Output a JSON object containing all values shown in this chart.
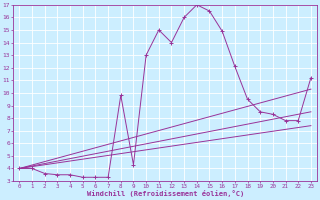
{
  "xlabel": "Windchill (Refroidissement éolien,°C)",
  "bg_color": "#cceeff",
  "line_color": "#993399",
  "grid_color": "#ffffff",
  "xlim": [
    -0.5,
    23.5
  ],
  "ylim": [
    3,
    17
  ],
  "xticks": [
    0,
    1,
    2,
    3,
    4,
    5,
    6,
    7,
    8,
    9,
    10,
    11,
    12,
    13,
    14,
    15,
    16,
    17,
    18,
    19,
    20,
    21,
    22,
    23
  ],
  "yticks": [
    3,
    4,
    5,
    6,
    7,
    8,
    9,
    10,
    11,
    12,
    13,
    14,
    15,
    16,
    17
  ],
  "main_x": [
    0,
    1,
    2,
    3,
    4,
    5,
    6,
    7,
    8,
    9,
    10,
    11,
    12,
    13,
    14,
    15,
    16,
    17,
    18,
    19,
    20,
    21,
    22,
    23
  ],
  "main_y": [
    4.0,
    4.0,
    3.6,
    3.5,
    3.5,
    3.3,
    3.3,
    3.3,
    9.8,
    4.3,
    13.0,
    15.0,
    14.0,
    16.0,
    17.0,
    16.5,
    14.9,
    12.1,
    9.5,
    8.5,
    8.3,
    7.8,
    7.8,
    11.2
  ],
  "line2_x": [
    0,
    23
  ],
  "line2_y": [
    4.0,
    10.3
  ],
  "line3_x": [
    0,
    23
  ],
  "line3_y": [
    4.0,
    8.5
  ],
  "line4_x": [
    0,
    23
  ],
  "line4_y": [
    4.0,
    7.4
  ]
}
